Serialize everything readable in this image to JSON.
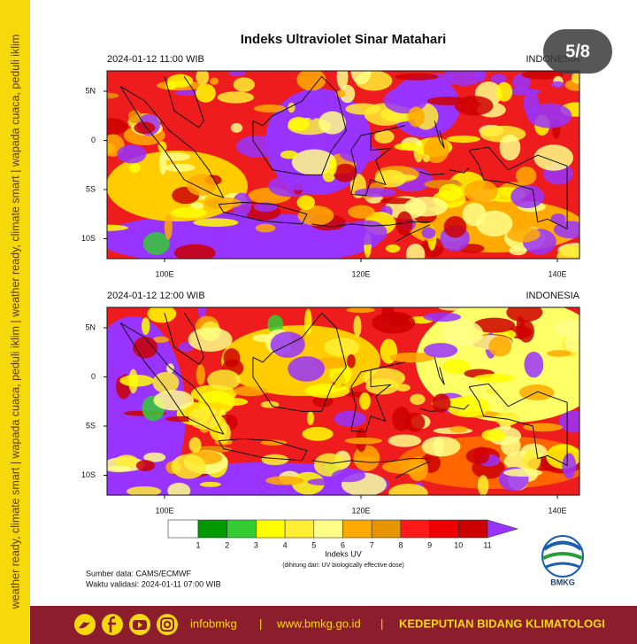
{
  "side_banner": "weather ready, climate smart | wapada cuaca, peduli iklim | weather ready, climate smart | wapada cuaca, peduli iklim",
  "slide_counter": "5/8",
  "title": "Indeks Ultraviolet Sinar Matahari",
  "panels": [
    {
      "time": "2024-01-12 11:00 WIB",
      "region": "INDONESIA"
    },
    {
      "time": "2024-01-12 12:00 WIB",
      "region": "INDONESIA"
    }
  ],
  "lat_labels": [
    "5N",
    "0",
    "5S",
    "10S"
  ],
  "lon_labels": [
    "100E",
    "120E",
    "140E"
  ],
  "colorbar": {
    "ticks": [
      1,
      2,
      3,
      4,
      5,
      6,
      7,
      8,
      9,
      10,
      11
    ],
    "colors": [
      "#ffffff",
      "#009900",
      "#33cc33",
      "#ffff00",
      "#ffee33",
      "#ffff88",
      "#ffaa00",
      "#e69500",
      "#ff1a1a",
      "#ee0000",
      "#cc0000",
      "#9933ff"
    ],
    "label": "Indeks UV",
    "note": "(dihitung dari: UV biologically effective dose)"
  },
  "source": "Sumber data: CAMS/ECMWF",
  "validity": "Waktu validasi: 2024-01-11 07:00 WIB",
  "logo_text": "BMKG",
  "footer": {
    "handle": "infobmkg",
    "separator": "|",
    "website": "www.bmkg.go.id",
    "department": "KEDEPUTIAN BIDANG KLIMATOLOGI"
  }
}
